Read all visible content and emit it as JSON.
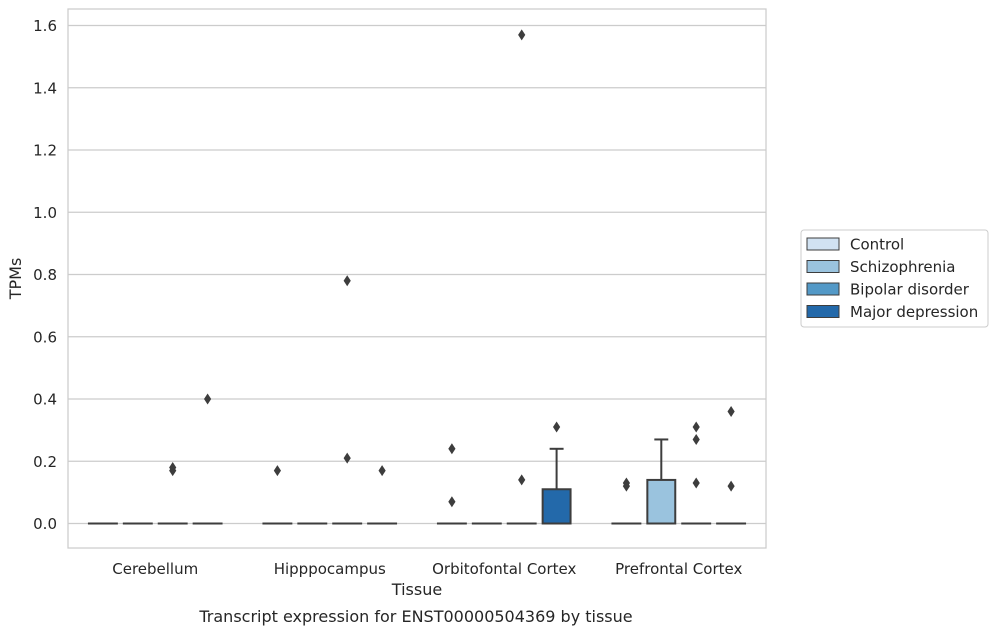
{
  "chart_data": {
    "type": "box",
    "title": "Transcript expression for ENST00000504369 by tissue",
    "xlabel": "Tissue",
    "ylabel": "TPMs",
    "ylim": [
      -0.08,
      1.65
    ],
    "yticks": [
      0.0,
      0.2,
      0.4,
      0.6,
      0.8,
      1.0,
      1.2,
      1.4,
      1.6
    ],
    "ytick_labels": [
      "0.0",
      "0.2",
      "0.4",
      "0.6",
      "0.8",
      "1.0",
      "1.2",
      "1.4",
      "1.6"
    ],
    "grid": true,
    "legend_position": "right",
    "categories": [
      "Cerebellum",
      "Hipppocampus",
      "Orbitofontal Cortex",
      "Prefrontal Cortex"
    ],
    "series": [
      {
        "name": "Control",
        "color": "#d1e2f2",
        "boxes": [
          {
            "q1": 0,
            "median": 0,
            "q3": 0,
            "whislo": 0,
            "whishi": 0,
            "fliers": []
          },
          {
            "q1": 0,
            "median": 0,
            "q3": 0,
            "whislo": 0,
            "whishi": 0,
            "fliers": [
              0.17
            ]
          },
          {
            "q1": 0,
            "median": 0,
            "q3": 0,
            "whislo": 0,
            "whishi": 0,
            "fliers": [
              0.24,
              0.07
            ]
          },
          {
            "q1": 0,
            "median": 0,
            "q3": 0,
            "whislo": 0,
            "whishi": 0,
            "fliers": [
              0.13,
              0.12
            ]
          }
        ]
      },
      {
        "name": "Schizophrenia",
        "color": "#9ac3de",
        "boxes": [
          {
            "q1": 0,
            "median": 0,
            "q3": 0,
            "whislo": 0,
            "whishi": 0,
            "fliers": []
          },
          {
            "q1": 0,
            "median": 0,
            "q3": 0,
            "whislo": 0,
            "whishi": 0,
            "fliers": []
          },
          {
            "q1": 0,
            "median": 0,
            "q3": 0,
            "whislo": 0,
            "whishi": 0,
            "fliers": []
          },
          {
            "q1": 0,
            "median": 0,
            "q3": 0.14,
            "whislo": 0,
            "whishi": 0.27,
            "fliers": []
          }
        ]
      },
      {
        "name": "Bipolar disorder",
        "color": "#5399c7",
        "boxes": [
          {
            "q1": 0,
            "median": 0,
            "q3": 0,
            "whislo": 0,
            "whishi": 0,
            "fliers": [
              0.18,
              0.17
            ]
          },
          {
            "q1": 0,
            "median": 0,
            "q3": 0,
            "whislo": 0,
            "whishi": 0,
            "fliers": [
              0.78,
              0.21
            ]
          },
          {
            "q1": 0,
            "median": 0,
            "q3": 0,
            "whislo": 0,
            "whishi": 0,
            "fliers": [
              1.57,
              0.14
            ]
          },
          {
            "q1": 0,
            "median": 0,
            "q3": 0,
            "whislo": 0,
            "whishi": 0,
            "fliers": [
              0.31,
              0.27,
              0.13
            ]
          }
        ]
      },
      {
        "name": "Major depression",
        "color": "#2369aa",
        "boxes": [
          {
            "q1": 0,
            "median": 0,
            "q3": 0,
            "whislo": 0,
            "whishi": 0,
            "fliers": [
              0.4
            ]
          },
          {
            "q1": 0,
            "median": 0,
            "q3": 0,
            "whislo": 0,
            "whishi": 0,
            "fliers": [
              0.17
            ]
          },
          {
            "q1": 0,
            "median": 0,
            "q3": 0.11,
            "whislo": 0,
            "whishi": 0.24,
            "fliers": [
              0.31
            ]
          },
          {
            "q1": 0,
            "median": 0,
            "q3": 0,
            "whislo": 0,
            "whishi": 0,
            "fliers": [
              0.36,
              0.12
            ]
          }
        ]
      }
    ]
  }
}
